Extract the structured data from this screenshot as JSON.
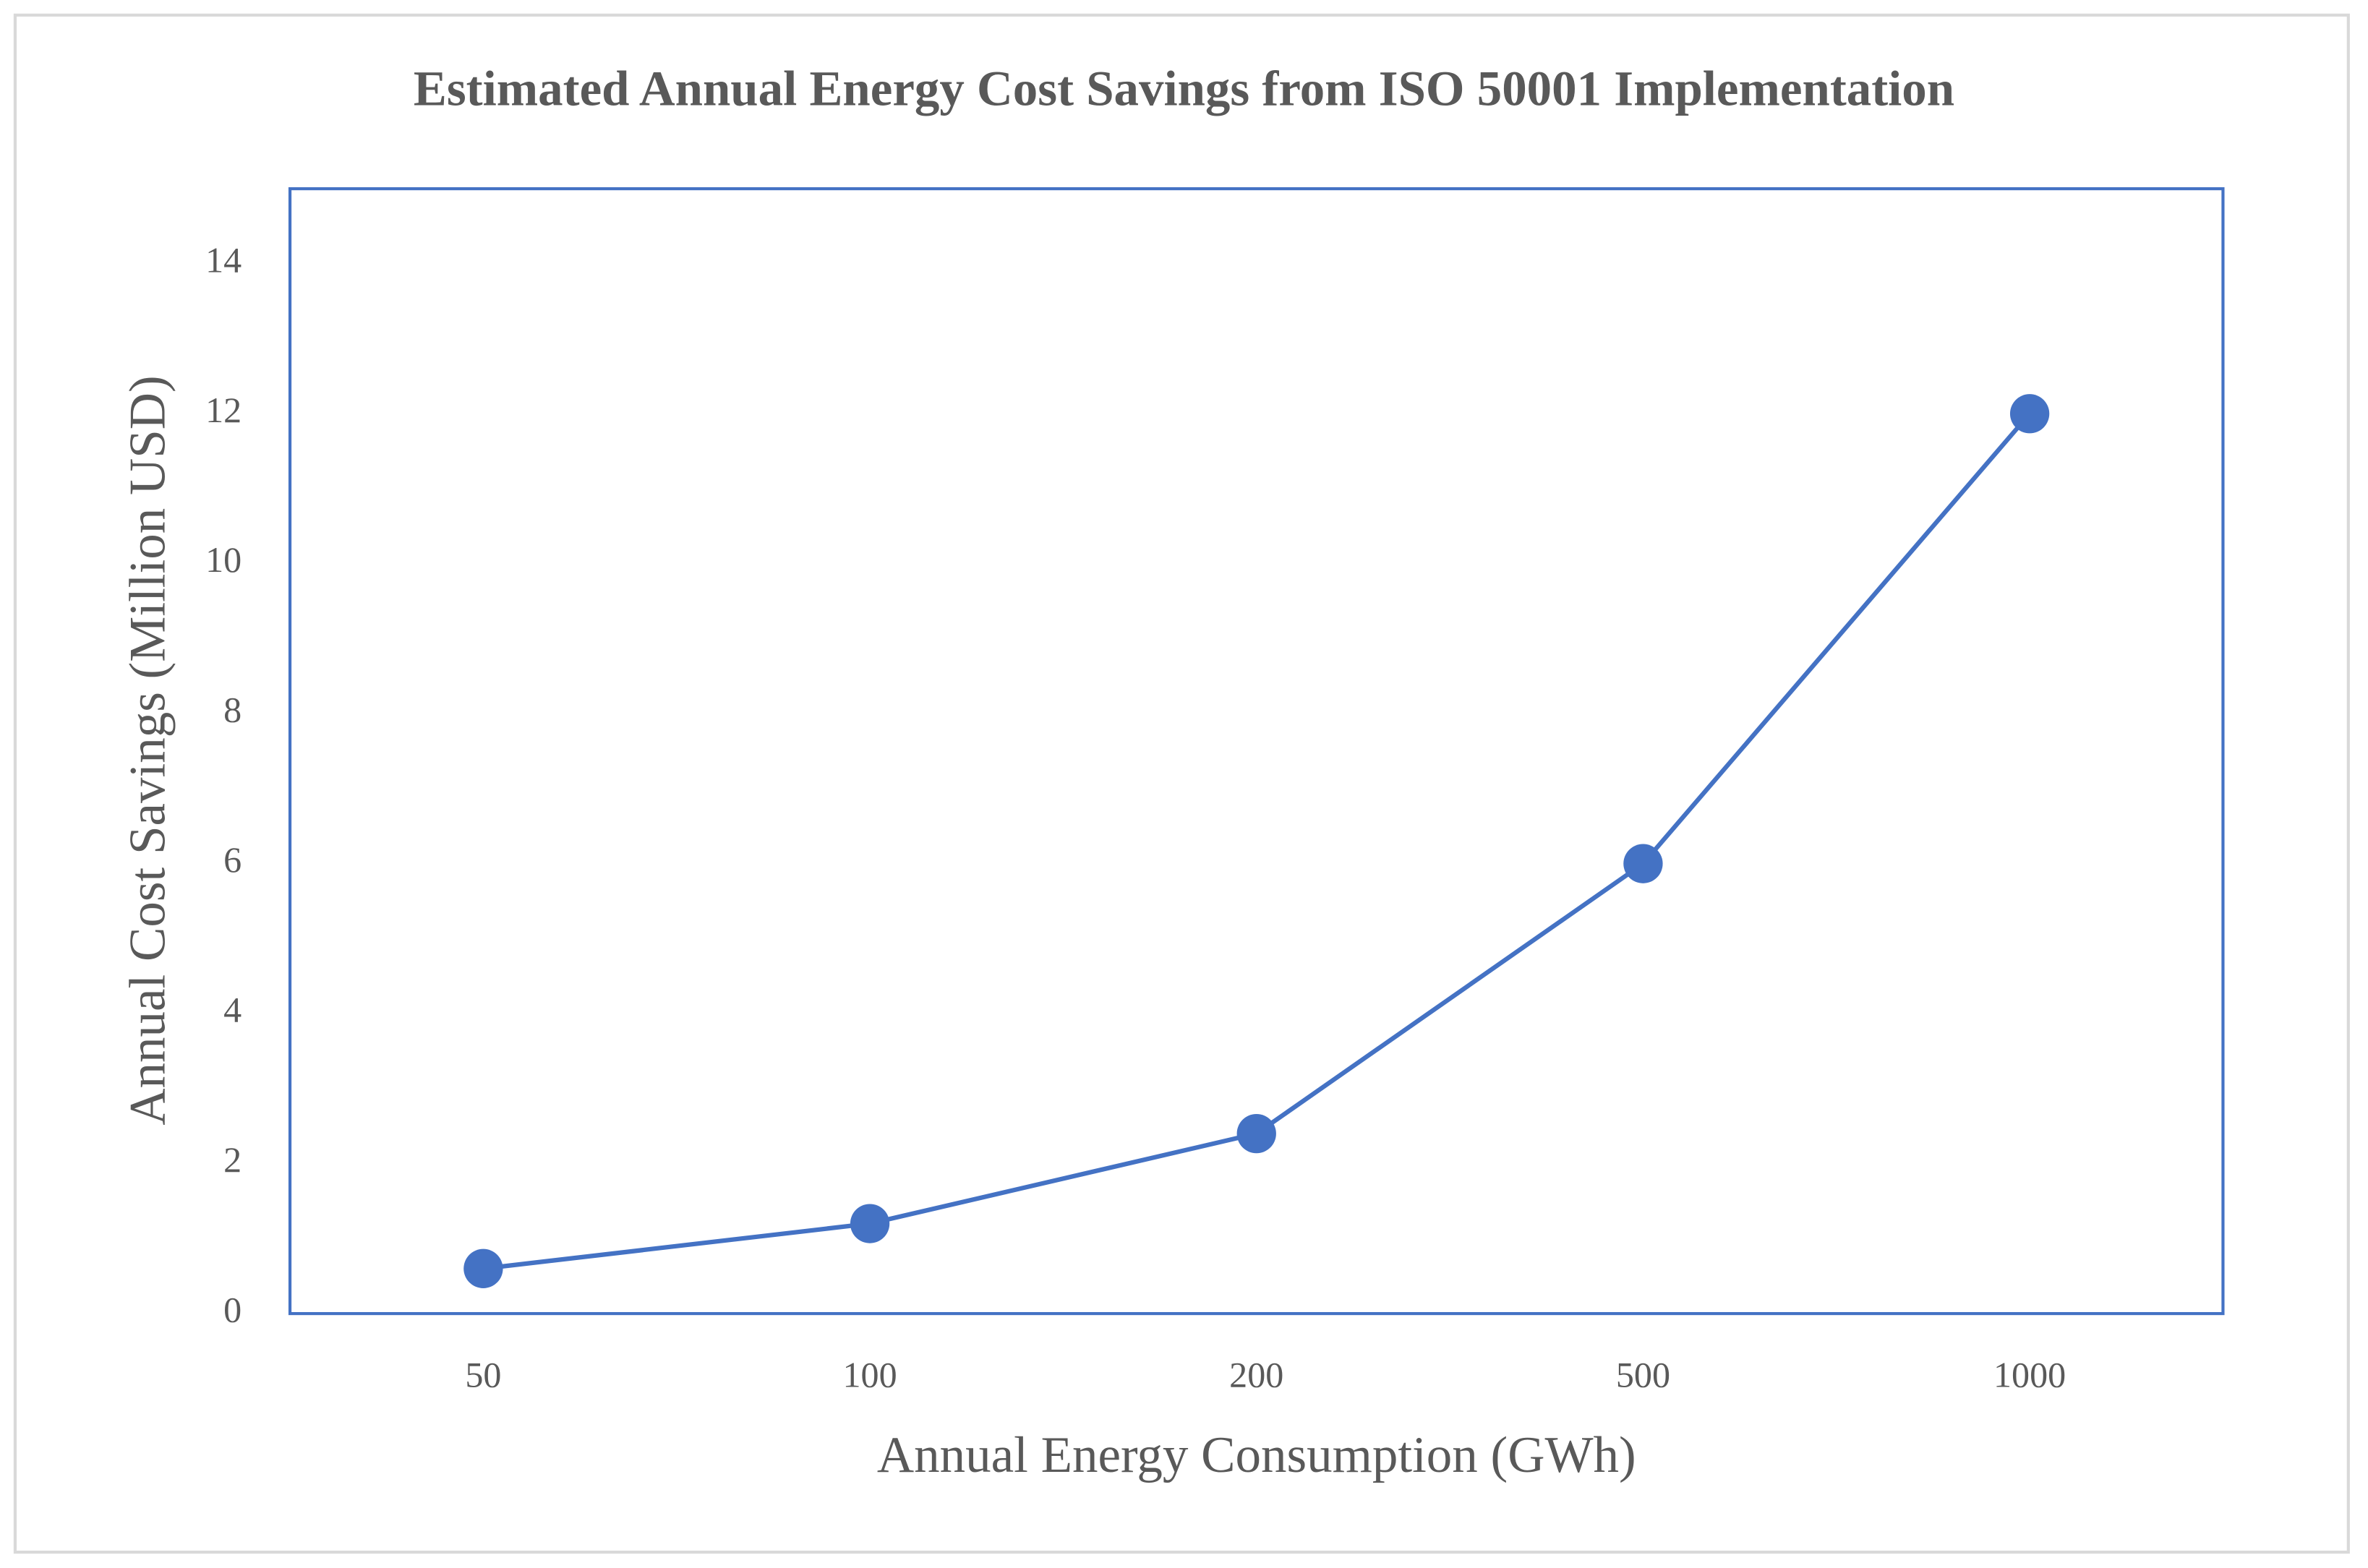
{
  "chart_data": {
    "type": "line",
    "title": "Estimated Annual Energy Cost Savings from ISO 50001 Implementation",
    "x_label": "Annual Energy Consumption (GWh)",
    "y_label": "Annual Cost Savings (Million USD)",
    "categories": [
      "50",
      "100",
      "200",
      "500",
      "1000"
    ],
    "series": [
      {
        "color": "#4472c4",
        "values": [
          0.6,
          1.2,
          2.4,
          6,
          12
        ]
      }
    ],
    "ylim": [
      0,
      15
    ],
    "yticks": [
      0,
      2,
      4,
      6,
      8,
      10,
      12,
      14
    ],
    "grid": false
  }
}
